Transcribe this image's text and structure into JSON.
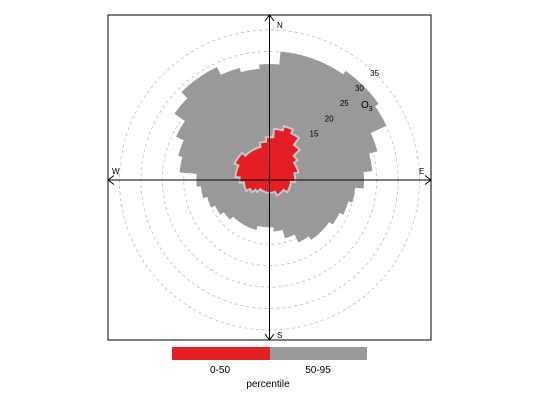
{
  "colors": {
    "band_0_50": "#e31e24",
    "band_50_95": "#999999",
    "circle": "#bbbbbb",
    "boundary": "#c8c8c8"
  },
  "chart_data": {
    "type": "polar-percentile-rose",
    "pollutant_label": "O",
    "pollutant_sub": "3",
    "axis_labels": {
      "north": "N",
      "south": "S",
      "east": "E",
      "west": "W"
    },
    "radial_ticks": [
      "15",
      "20",
      "25",
      "30",
      "35"
    ],
    "radial_tick_values": [
      15,
      20,
      25,
      30,
      35
    ],
    "circle_values": [
      5,
      10,
      15,
      20,
      25,
      30,
      35
    ],
    "rmax": 35,
    "legend": {
      "title": "percentile",
      "items": [
        "0-50",
        "50-95"
      ]
    },
    "directions_deg": [
      0,
      10,
      20,
      30,
      40,
      50,
      60,
      70,
      80,
      90,
      100,
      110,
      120,
      130,
      140,
      150,
      160,
      170,
      180,
      190,
      200,
      210,
      220,
      230,
      240,
      250,
      260,
      270,
      280,
      290,
      300,
      310,
      320,
      330,
      340,
      350
    ],
    "p50": [
      10,
      12,
      13,
      12,
      10,
      8,
      7,
      7,
      6,
      6,
      5,
      5,
      5,
      4,
      4,
      4,
      3,
      3,
      3,
      3,
      3,
      3,
      3,
      4,
      5,
      6,
      6,
      7,
      8,
      8,
      9,
      9,
      8,
      8,
      8,
      9
    ],
    "p95": [
      27,
      30,
      30,
      30,
      31,
      31,
      30,
      26,
      24,
      22,
      20,
      19,
      18,
      17,
      17,
      16,
      14,
      12,
      11,
      11,
      12,
      12,
      12,
      13,
      14,
      15,
      16,
      17,
      21,
      22,
      24,
      27,
      29,
      29,
      27,
      26
    ]
  }
}
